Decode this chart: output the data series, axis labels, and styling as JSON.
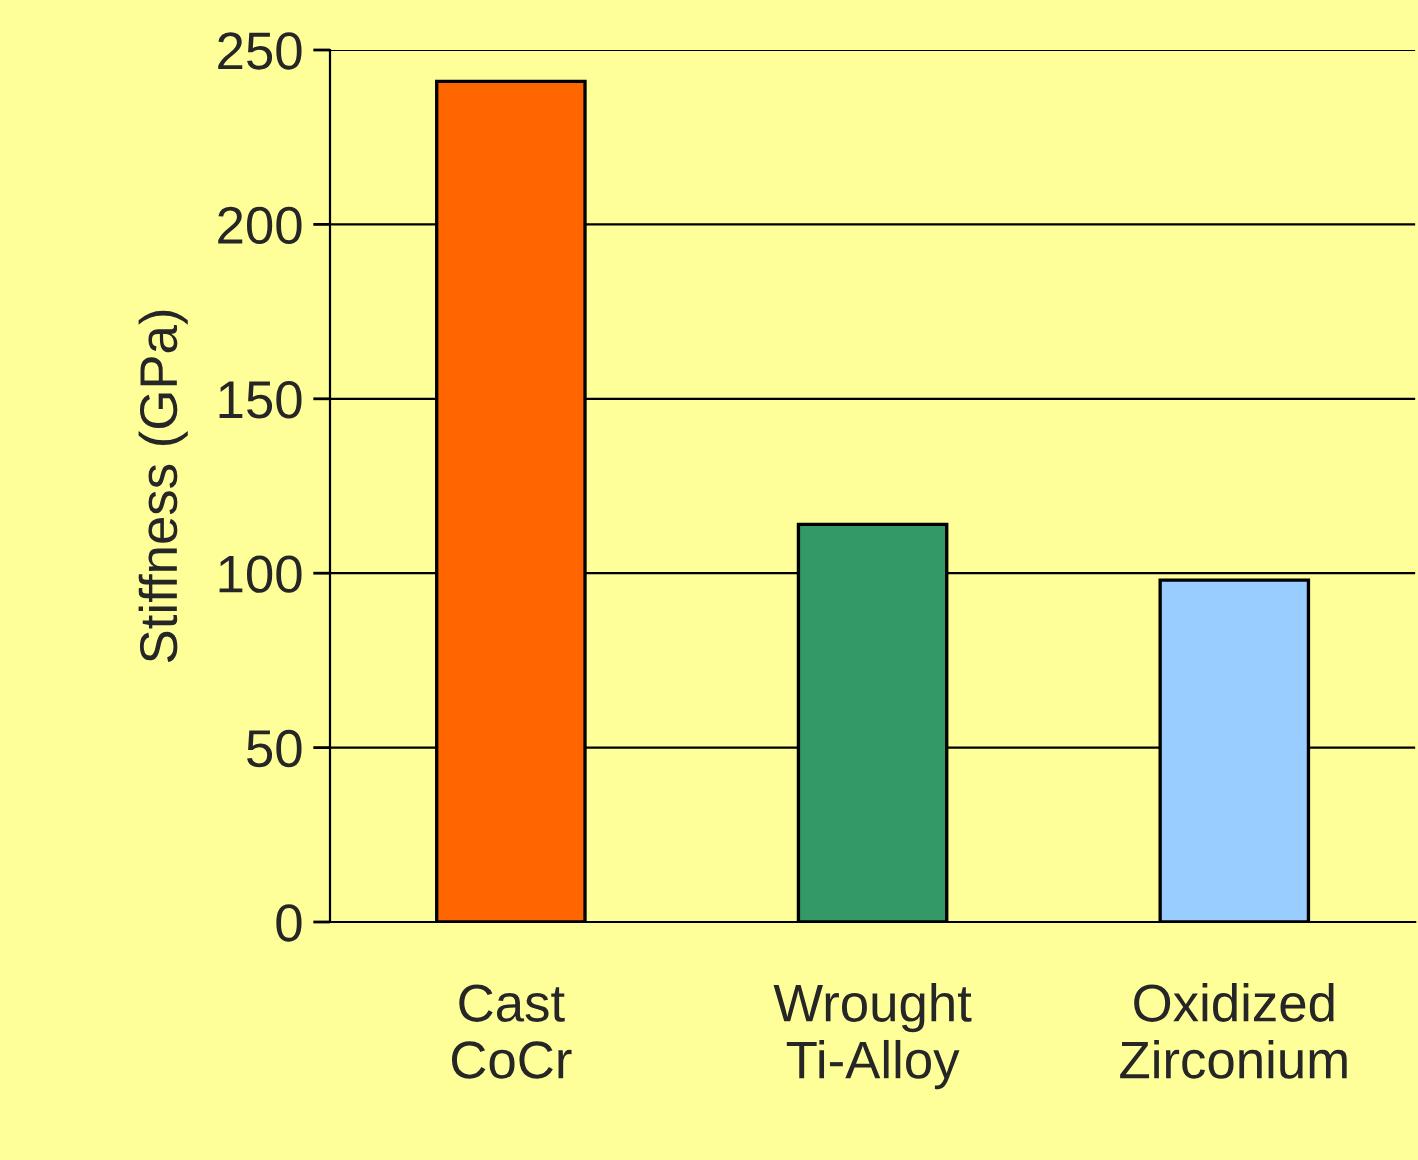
{
  "chart_data": {
    "type": "bar",
    "ylabel": "Stiffness (GPa)",
    "categories": [
      "Cast\nCoCr",
      "Wrought\nTi-Alloy",
      "Oxidized\nZirconium"
    ],
    "values": [
      241,
      114,
      98
    ],
    "colors": [
      "#ff6600",
      "#339966",
      "#99ccff"
    ],
    "ylim": [
      0,
      250
    ],
    "yticks": [
      0,
      50,
      100,
      150,
      200,
      250
    ],
    "grid": "y",
    "legend": false
  }
}
